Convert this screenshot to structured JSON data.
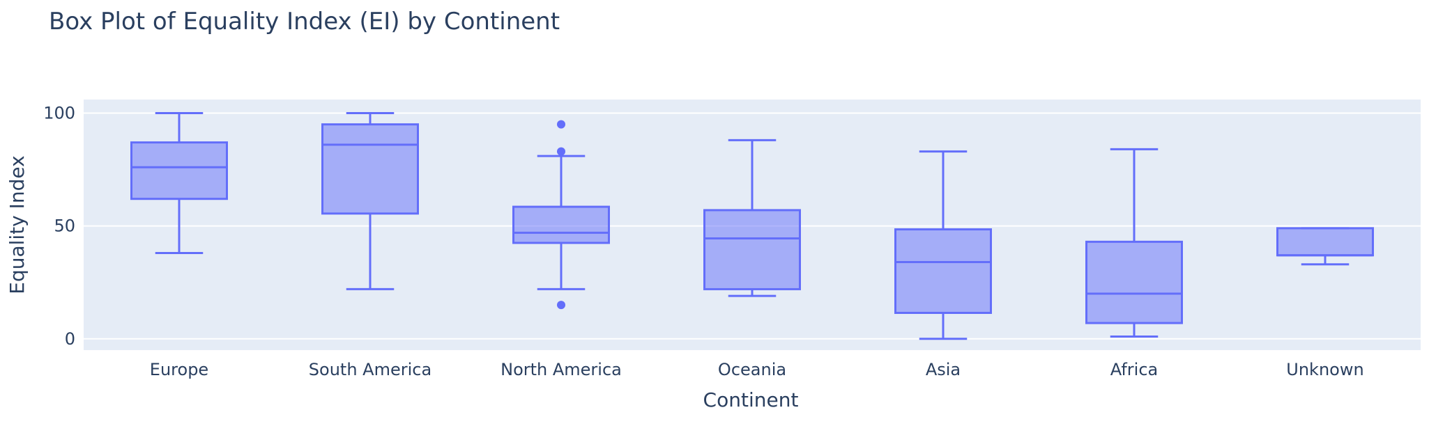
{
  "chart_data": {
    "type": "box",
    "title": "Box Plot of Equality Index (EI) by Continent",
    "xlabel": "Continent",
    "ylabel": "Equality Index",
    "ylim": [
      -5,
      106
    ],
    "yticks": [
      0,
      50,
      100
    ],
    "grid": true,
    "legend": "none",
    "categories": [
      "Europe",
      "South America",
      "North America",
      "Oceania",
      "Asia",
      "Africa",
      "Unknown"
    ],
    "boxes": [
      {
        "category": "Europe",
        "min": 38,
        "q1": 62,
        "median": 76,
        "q3": 87,
        "max": 100,
        "outliers": []
      },
      {
        "category": "South America",
        "min": 22,
        "q1": 55.5,
        "median": 86,
        "q3": 95,
        "max": 100,
        "outliers": []
      },
      {
        "category": "North America",
        "min": 22,
        "q1": 42.5,
        "median": 47,
        "q3": 58.5,
        "max": 81,
        "outliers": [
          95,
          83,
          15
        ]
      },
      {
        "category": "Oceania",
        "min": 19,
        "q1": 22,
        "median": 44.5,
        "q3": 57,
        "max": 88,
        "outliers": []
      },
      {
        "category": "Asia",
        "min": 0,
        "q1": 11.5,
        "median": 34,
        "q3": 48.5,
        "max": 83,
        "outliers": []
      },
      {
        "category": "Africa",
        "min": 1,
        "q1": 7,
        "median": 20,
        "q3": 43,
        "max": 84,
        "outliers": []
      },
      {
        "category": "Unknown",
        "min": 33,
        "q1": 37,
        "median": 37,
        "q3": 49,
        "max": 49,
        "outliers": []
      }
    ],
    "colors": {
      "line": "#636efa",
      "fill": "rgba(99,110,250,0.5)",
      "plot_bg": "#e5ecf6",
      "grid": "#ffffff",
      "text": "#2a3f5f"
    }
  }
}
